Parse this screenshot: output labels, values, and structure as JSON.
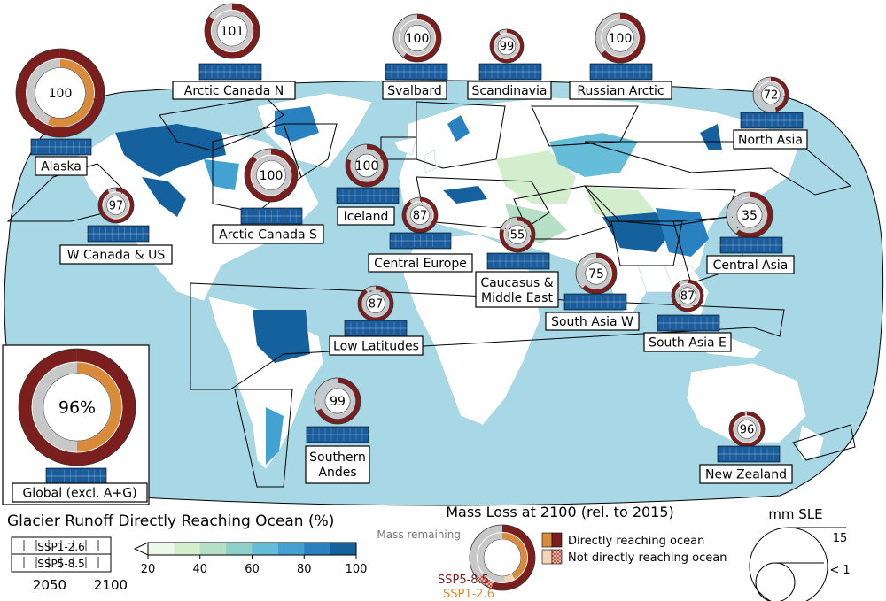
{
  "title": "Glacier Runoff Directly Reaching Ocean (%)",
  "legend": {
    "scenario_top": "SSP1-2.6",
    "scenario_bottom": "SSP5-8.5",
    "year_start": "2050",
    "year_end": "2100",
    "colorbar_ticks": [
      "20",
      "40",
      "60",
      "80",
      "100"
    ],
    "colorbar_colors": [
      "#edf8e9",
      "#d3eecd",
      "#b5e0c5",
      "#8fd0c8",
      "#66bdd9",
      "#43a2d2",
      "#2a81c0",
      "#14619e"
    ],
    "mass_loss_title": "Mass Loss at 2100 (rel. to 2015)",
    "mass_remaining": "Mass remaining",
    "ssp585_label": "SSP5-8.5",
    "ssp126_label": "SSP1-2.6",
    "directly": "Directly reaching ocean",
    "not_directly": "Not directly reaching ocean",
    "size_title": "mm SLE",
    "size_big": "15",
    "size_small": "< 1"
  },
  "colors": {
    "ocean": "#a8d8e6",
    "land": "#ffffff",
    "ssp585": "#7b1e1e",
    "ssp126": "#d98b3a",
    "remaining": "#c8c8c8",
    "bar": "#1a5c9c"
  },
  "regions": [
    {
      "name": "Arctic Canada N",
      "value": "101"
    },
    {
      "name": "Alaska",
      "value": "100"
    },
    {
      "name": "Svalbard",
      "value": "100"
    },
    {
      "name": "Scandinavia",
      "value": "99"
    },
    {
      "name": "Russian Arctic",
      "value": "100"
    },
    {
      "name": "North Asia",
      "value": "72"
    },
    {
      "name": "Arctic Canada S",
      "value": "100"
    },
    {
      "name": "Iceland",
      "value": "100"
    },
    {
      "name": "W Canada & US",
      "value": "97"
    },
    {
      "name": "Central Europe",
      "value": "87"
    },
    {
      "name": "Caucasus & Middle East",
      "value": "55"
    },
    {
      "name": "Central Asia",
      "value": "35"
    },
    {
      "name": "South Asia W",
      "value": "75"
    },
    {
      "name": "South Asia E",
      "value": "87"
    },
    {
      "name": "Low Latitudes",
      "value": "87"
    },
    {
      "name": "Southern Andes",
      "value": "99"
    },
    {
      "name": "New Zealand",
      "value": "96"
    },
    {
      "name": "Global (excl. A+G)",
      "value": "96%"
    }
  ]
}
